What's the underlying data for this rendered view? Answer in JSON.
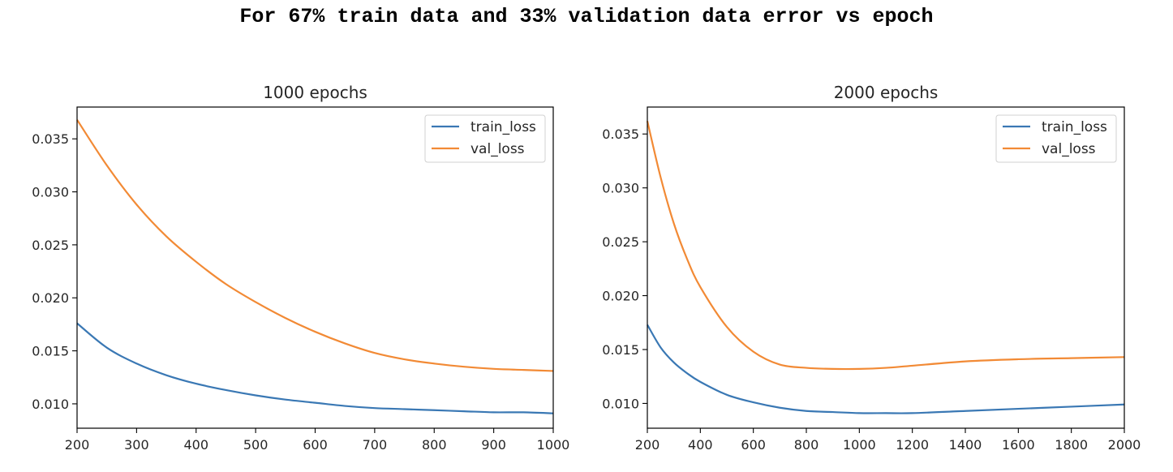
{
  "figure": {
    "title": "For 67% train data and 33% validation data error vs epoch"
  },
  "colors": {
    "train": "#3a78b4",
    "val": "#f28a35"
  },
  "chart_data": [
    {
      "type": "line",
      "title": "1000 epochs",
      "xlabel": "",
      "ylabel": "",
      "xlim": [
        200,
        1000
      ],
      "ylim": [
        0.0077,
        0.038
      ],
      "xticks": [
        200,
        300,
        400,
        500,
        600,
        700,
        800,
        900,
        1000
      ],
      "yticks": [
        0.01,
        0.015,
        0.02,
        0.025,
        0.03,
        0.035
      ],
      "ytick_labels": [
        "0.010",
        "0.015",
        "0.020",
        "0.025",
        "0.030",
        "0.035"
      ],
      "legend": {
        "position": "upper-right"
      },
      "grid": false,
      "series": [
        {
          "name": "train_loss",
          "x": [
            200,
            250,
            300,
            350,
            400,
            450,
            500,
            550,
            600,
            650,
            700,
            750,
            800,
            850,
            900,
            950,
            1000
          ],
          "y": [
            0.0176,
            0.0153,
            0.0138,
            0.0127,
            0.0119,
            0.0113,
            0.0108,
            0.0104,
            0.0101,
            0.0098,
            0.0096,
            0.0095,
            0.0094,
            0.0093,
            0.0092,
            0.0092,
            0.0091
          ]
        },
        {
          "name": "val_loss",
          "x": [
            200,
            250,
            300,
            350,
            400,
            450,
            500,
            550,
            600,
            650,
            700,
            750,
            800,
            850,
            900,
            950,
            1000
          ],
          "y": [
            0.0368,
            0.0325,
            0.0288,
            0.0258,
            0.0234,
            0.0213,
            0.0196,
            0.0181,
            0.0168,
            0.0157,
            0.0148,
            0.0142,
            0.0138,
            0.0135,
            0.0133,
            0.0132,
            0.0131
          ]
        }
      ]
    },
    {
      "type": "line",
      "title": "2000 epochs",
      "xlabel": "",
      "ylabel": "",
      "xlim": [
        200,
        2000
      ],
      "ylim": [
        0.0077,
        0.0375
      ],
      "xticks": [
        200,
        400,
        600,
        800,
        1000,
        1200,
        1400,
        1600,
        1800,
        2000
      ],
      "yticks": [
        0.01,
        0.015,
        0.02,
        0.025,
        0.03,
        0.035
      ],
      "ytick_labels": [
        "0.010",
        "0.015",
        "0.020",
        "0.025",
        "0.030",
        "0.035"
      ],
      "legend": {
        "position": "upper-right"
      },
      "grid": false,
      "series": [
        {
          "name": "train_loss",
          "x": [
            200,
            250,
            300,
            350,
            400,
            500,
            600,
            700,
            800,
            900,
            1000,
            1100,
            1200,
            1400,
            1600,
            1800,
            2000
          ],
          "y": [
            0.0173,
            0.0152,
            0.0138,
            0.0128,
            0.012,
            0.0108,
            0.0101,
            0.0096,
            0.0093,
            0.0092,
            0.0091,
            0.0091,
            0.0091,
            0.0093,
            0.0095,
            0.0097,
            0.0099
          ]
        },
        {
          "name": "val_loss",
          "x": [
            200,
            250,
            300,
            350,
            400,
            500,
            600,
            700,
            800,
            900,
            1000,
            1100,
            1200,
            1400,
            1600,
            1800,
            2000
          ],
          "y": [
            0.0362,
            0.031,
            0.0267,
            0.0234,
            0.0208,
            0.0171,
            0.0148,
            0.0136,
            0.0133,
            0.0132,
            0.0132,
            0.0133,
            0.0135,
            0.0139,
            0.0141,
            0.0142,
            0.0143
          ]
        }
      ]
    }
  ]
}
